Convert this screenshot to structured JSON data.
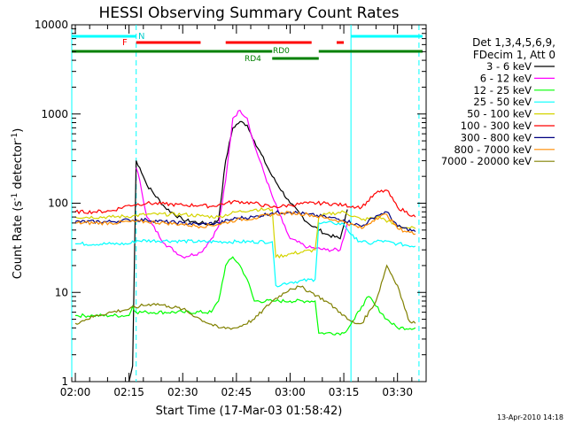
{
  "chart_data": {
    "type": "line",
    "title": "HESSI Observing Summary Count Rates",
    "xlabel": "Start Time (17-Mar-03 01:58:42)",
    "ylabel_main": "Count Rate (s",
    "ylabel_sup1": "-1",
    "ylabel_mid": " detector",
    "ylabel_sup2": "-1",
    "ylabel_end": ")",
    "y_scale": "log",
    "xlim": [
      "01:59",
      "03:38"
    ],
    "ylim": [
      1,
      10000
    ],
    "x_ticks": [
      "02:00",
      "02:15",
      "02:30",
      "02:45",
      "03:00",
      "03:15",
      "03:30"
    ],
    "y_ticks": [
      "1",
      "10",
      "100",
      "1000",
      "10000"
    ],
    "legend_header": [
      "Det 1,3,4,5,6,9,",
      "FDecim 1, Att 0"
    ],
    "timestamp": "13-Apr-2010 14:18",
    "annotations": {
      "night": "N",
      "flag": "F",
      "rd0": "RD0",
      "rd4": "RD4"
    },
    "flag_bars": {
      "N": {
        "color": "#00ffff",
        "segments": [
          [
            "01:59",
            "02:17"
          ],
          [
            "03:17",
            "03:37"
          ]
        ]
      },
      "F": {
        "color": "#ff0000",
        "segments": [
          [
            "02:17",
            "02:35"
          ],
          [
            "02:42",
            "03:06"
          ],
          [
            "03:13",
            "03:15"
          ]
        ]
      },
      "RD0": {
        "color": "#008000",
        "segments": [
          [
            "01:59",
            "02:55"
          ],
          [
            "03:08",
            "03:37"
          ]
        ]
      },
      "RD4": {
        "color": "#008000",
        "segments": [
          [
            "02:55",
            "03:08"
          ]
        ]
      }
    },
    "vertical_lines": [
      {
        "time": "01:59",
        "style": "solid"
      },
      {
        "time": "02:17",
        "style": "dashed"
      },
      {
        "time": "03:17",
        "style": "solid"
      },
      {
        "time": "03:36",
        "style": "dashed"
      }
    ],
    "series": [
      {
        "name": "3 - 6 keV",
        "color": "#000000",
        "x": [
          "02:15",
          "02:16",
          "02:17",
          "02:18",
          "02:20",
          "02:25",
          "02:30",
          "02:35",
          "02:38",
          "02:40",
          "02:42",
          "02:44",
          "02:46",
          "02:48",
          "02:50",
          "02:55",
          "03:00",
          "03:05",
          "03:10",
          "03:14",
          "03:16"
        ],
        "y": [
          1,
          1.5,
          300,
          250,
          160,
          90,
          65,
          60,
          58,
          65,
          300,
          700,
          820,
          750,
          500,
          200,
          100,
          60,
          45,
          40,
          85
        ]
      },
      {
        "name": "6 - 12 keV",
        "color": "#ff00ff",
        "x": [
          "02:17",
          "02:18",
          "02:20",
          "02:25",
          "02:30",
          "02:35",
          "02:38",
          "02:40",
          "02:42",
          "02:44",
          "02:46",
          "02:48",
          "02:50",
          "02:55",
          "02:58",
          "03:00",
          "03:05",
          "03:10",
          "03:14",
          "03:16"
        ],
        "y": [
          250,
          180,
          70,
          35,
          25,
          28,
          40,
          55,
          180,
          900,
          1100,
          900,
          450,
          120,
          60,
          40,
          32,
          30,
          30,
          60
        ]
      },
      {
        "name": "12 - 25 keV",
        "color": "#00ff00",
        "x": [
          "02:00",
          "02:05",
          "02:10",
          "02:15",
          "02:16",
          "02:17",
          "02:20",
          "02:30",
          "02:38",
          "02:40",
          "02:42",
          "02:44",
          "02:46",
          "02:48",
          "02:50",
          "02:55",
          "02:56",
          "03:00",
          "03:05",
          "03:07",
          "03:08",
          "03:10",
          "03:15",
          "03:18",
          "03:20",
          "03:22",
          "03:24",
          "03:27",
          "03:30",
          "03:35"
        ],
        "y": [
          5.5,
          5.5,
          5.5,
          5.5,
          7,
          6,
          6,
          6,
          6,
          8,
          20,
          25,
          20,
          14,
          8,
          8,
          8,
          8,
          8,
          8,
          3.5,
          3.5,
          3.5,
          5,
          7,
          9,
          7,
          5,
          4,
          4
        ]
      },
      {
        "name": "25 - 50 keV",
        "color": "#00ffff",
        "x": [
          "02:00",
          "02:10",
          "02:15",
          "02:17",
          "02:25",
          "02:35",
          "02:45",
          "02:55",
          "02:56",
          "03:00",
          "03:07",
          "03:08",
          "03:12",
          "03:15",
          "03:18",
          "03:22",
          "03:25",
          "03:30",
          "03:35"
        ],
        "y": [
          35,
          35,
          35,
          38,
          38,
          37,
          37,
          37,
          12,
          13,
          14,
          60,
          60,
          58,
          40,
          35,
          38,
          35,
          33
        ]
      },
      {
        "name": "50 - 100 keV",
        "color": "#d4d400",
        "x": [
          "02:00",
          "02:10",
          "02:16",
          "02:20",
          "02:30",
          "02:35",
          "02:40",
          "02:45",
          "02:50",
          "02:55",
          "02:56",
          "03:00",
          "03:07",
          "03:08",
          "03:10",
          "03:15",
          "03:20",
          "03:25",
          "03:30",
          "03:35"
        ],
        "y": [
          70,
          70,
          72,
          75,
          75,
          72,
          70,
          80,
          85,
          85,
          25,
          27,
          30,
          70,
          75,
          80,
          65,
          70,
          55,
          52
        ]
      },
      {
        "name": "100 - 300 keV",
        "color": "#ff0000",
        "x": [
          "02:00",
          "02:05",
          "02:10",
          "02:15",
          "02:20",
          "02:25",
          "02:30",
          "02:35",
          "02:38",
          "02:42",
          "02:45",
          "02:50",
          "02:55",
          "03:00",
          "03:05",
          "03:10",
          "03:15",
          "03:20",
          "03:24",
          "03:27",
          "03:30",
          "03:35"
        ],
        "y": [
          80,
          80,
          82,
          95,
          100,
          98,
          95,
          95,
          92,
          100,
          105,
          100,
          90,
          95,
          100,
          100,
          95,
          90,
          130,
          140,
          90,
          70
        ]
      },
      {
        "name": "300 - 800 keV",
        "color": "#000080",
        "x": [
          "02:00",
          "02:10",
          "02:15",
          "02:20",
          "02:25",
          "02:30",
          "02:35",
          "02:40",
          "02:45",
          "02:50",
          "02:55",
          "03:00",
          "03:05",
          "03:10",
          "03:15",
          "03:20",
          "03:24",
          "03:27",
          "03:30",
          "03:35"
        ],
        "y": [
          62,
          62,
          65,
          65,
          62,
          60,
          58,
          60,
          68,
          70,
          78,
          80,
          75,
          70,
          65,
          55,
          72,
          80,
          55,
          48
        ]
      },
      {
        "name": "800 - 7000 keV",
        "color": "#ff8c00",
        "x": [
          "02:00",
          "02:10",
          "02:15",
          "02:20",
          "02:25",
          "02:30",
          "02:35",
          "02:40",
          "02:45",
          "02:50",
          "02:55",
          "03:00",
          "03:05",
          "03:10",
          "03:15",
          "03:20",
          "03:24",
          "03:27",
          "03:30",
          "03:35"
        ],
        "y": [
          60,
          60,
          62,
          62,
          60,
          58,
          55,
          58,
          65,
          68,
          75,
          78,
          75,
          68,
          62,
          52,
          68,
          75,
          52,
          45
        ]
      },
      {
        "name": "7000 - 20000 keV",
        "color": "#808000",
        "x": [
          "02:00",
          "02:03",
          "02:06",
          "02:10",
          "02:15",
          "02:18",
          "02:22",
          "02:26",
          "02:30",
          "02:35",
          "02:40",
          "02:45",
          "02:50",
          "02:55",
          "03:00",
          "03:03",
          "03:06",
          "03:10",
          "03:14",
          "03:16",
          "03:18",
          "03:20",
          "03:24",
          "03:27",
          "03:30",
          "03:33",
          "03:35"
        ],
        "y": [
          4.5,
          5,
          5.5,
          6,
          6.5,
          7,
          7.5,
          7,
          6.5,
          5,
          4,
          4,
          5,
          8,
          11,
          11.5,
          10,
          8,
          6,
          5,
          4.5,
          4.5,
          8,
          20,
          12,
          5,
          4.5
        ]
      }
    ]
  }
}
